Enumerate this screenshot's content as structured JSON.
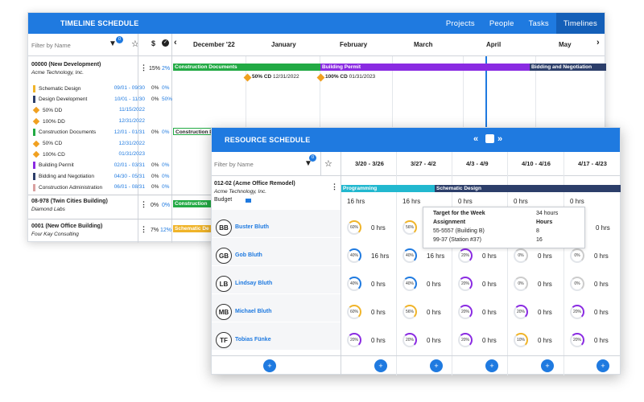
{
  "timeline": {
    "title": "TIMELINE SCHEDULE",
    "tabs": [
      "Projects",
      "People",
      "Tasks",
      "Timelines"
    ],
    "filter_placeholder": "Filter by Name",
    "filter_count": "0",
    "dollar": "$",
    "months": [
      "December '22",
      "January",
      "February",
      "March",
      "April",
      "May"
    ],
    "projects": [
      {
        "name": "00000 (New Development)",
        "client": "Acme Technology, Inc.",
        "pct": "15%",
        "pct2": "2%"
      },
      {
        "name": "08-978 (Twin Cities Building)",
        "client": "Diamond Labs",
        "pct": "0%",
        "pct2": "0%"
      },
      {
        "name": "0001 (New Office Building)",
        "client": "Four Kay Consulting",
        "pct": "7%",
        "pct2": "12%"
      }
    ],
    "tasks": [
      {
        "name": "Schematic Design",
        "dates": "09/01 - 09/30",
        "a": "0%",
        "b": "0%",
        "color": "#f0b429"
      },
      {
        "name": "Design Development",
        "dates": "10/01 - 11/30",
        "a": "0%",
        "b": "50%",
        "color": "#2c3e6a"
      },
      {
        "name": "50% DD",
        "dates": "11/15/2022",
        "a": "",
        "b": "",
        "color": "#f0a020"
      },
      {
        "name": "100% DD",
        "dates": "12/31/2022",
        "a": "",
        "b": "",
        "color": "#f0a020"
      },
      {
        "name": "Construction Documents",
        "dates": "12/01 - 01/31",
        "a": "0%",
        "b": "0%",
        "color": "#22aa44"
      },
      {
        "name": "50% CD",
        "dates": "12/31/2022",
        "a": "",
        "b": "",
        "color": "#f0a020"
      },
      {
        "name": "100% CD",
        "dates": "01/31/2023",
        "a": "",
        "b": "",
        "color": "#f0a020"
      },
      {
        "name": "Building Permit",
        "dates": "02/01 - 03/31",
        "a": "0%",
        "b": "0%",
        "color": "#8a2be2"
      },
      {
        "name": "Bidding and Negotiation",
        "dates": "04/30 - 05/31",
        "a": "0%",
        "b": "0%",
        "color": "#2c3e6a"
      },
      {
        "name": "Construction Administration",
        "dates": "06/01 - 08/31",
        "a": "0%",
        "b": "0%",
        "color": "#d9a0a0"
      }
    ],
    "bars": {
      "cd": "Construction Documents",
      "bp": "Building Permit",
      "bn": "Bidding and Negotiation",
      "cd_small": "Construction Do",
      "construction": "Construction",
      "schematic": "Schematic De"
    },
    "milestones": {
      "m1": "50% CD",
      "d1": "12/31/2022",
      "m2": "100% CD",
      "d2": "01/31/2023"
    }
  },
  "resource": {
    "title": "RESOURCE SCHEDULE",
    "filter_placeholder": "Filter by Name",
    "filter_count": "0",
    "weeks": [
      "3/20 - 3/26",
      "3/27 - 4/2",
      "4/3 - 4/9",
      "4/10 - 4/16",
      "4/17 - 4/23"
    ],
    "project": {
      "name": "012-02 (Acme Office Remodel)",
      "client": "Acme Technology, Inc.",
      "budget": "Budget"
    },
    "phases": {
      "p1": "Programming",
      "p2": "Schematic Design"
    },
    "budget_hrs": [
      "16 hrs",
      "16 hrs",
      "0 hrs",
      "0 hrs",
      "0 hrs"
    ],
    "people": [
      {
        "initials": "BB",
        "name": "Buster Bluth",
        "hrs": [
          "0 hrs",
          "0 hrs",
          "0 hrs",
          "0 hrs",
          "0 hrs"
        ],
        "pct": [
          "60%",
          "56%",
          "",
          "",
          ""
        ]
      },
      {
        "initials": "GB",
        "name": "Gob Bluth",
        "hrs": [
          "16 hrs",
          "16 hrs",
          "0 hrs",
          "0 hrs",
          "0 hrs"
        ],
        "pct": [
          "40%",
          "40%",
          "20%",
          "0%",
          "0%"
        ]
      },
      {
        "initials": "LB",
        "name": "Lindsay Bluth",
        "hrs": [
          "0 hrs",
          "0 hrs",
          "0 hrs",
          "0 hrs",
          "0 hrs"
        ],
        "pct": [
          "40%",
          "40%",
          "20%",
          "0%",
          "0%"
        ]
      },
      {
        "initials": "MB",
        "name": "Michael Bluth",
        "hrs": [
          "0 hrs",
          "0 hrs",
          "0 hrs",
          "0 hrs",
          "0 hrs"
        ],
        "pct": [
          "60%",
          "56%",
          "20%",
          "20%",
          "20%"
        ]
      },
      {
        "initials": "TF",
        "name": "Tobias Fünke",
        "hrs": [
          "0 hrs",
          "0 hrs",
          "0 hrs",
          "0 hrs",
          "0 hrs"
        ],
        "pct": [
          "20%",
          "20%",
          "20%",
          "10%",
          "20%"
        ]
      }
    ],
    "tooltip": {
      "title": "Target for the Week",
      "target": "34 hours",
      "assignment": "Assignment",
      "hours": "Hours",
      "rows": [
        [
          "55-5557 (Building B)",
          "8"
        ],
        [
          "99-37 (Station #37)",
          "16"
        ]
      ]
    }
  },
  "colors": {
    "accent": "#1f7ae0",
    "cd": "#22aa44",
    "bp": "#8a2be2",
    "bn": "#2c3e6a",
    "prog": "#22b8cf",
    "schem": "#2c3e6a",
    "today": "#1f7ae0"
  }
}
